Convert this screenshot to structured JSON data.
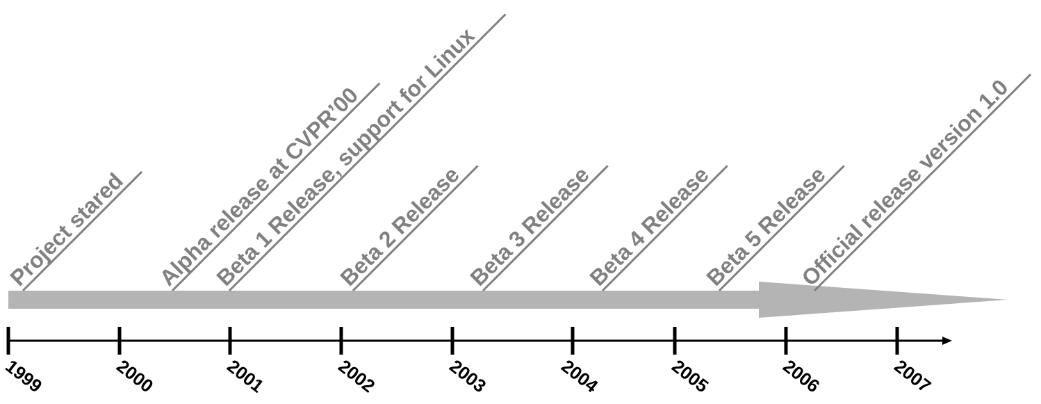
{
  "timeline": {
    "years": [
      "1999",
      "2000",
      "2001",
      "2002",
      "2003",
      "2004",
      "2005",
      "2006",
      "2007"
    ],
    "events": [
      {
        "label": "Project stared"
      },
      {
        "label": "Alpha release at CVPR’00"
      },
      {
        "label": "Beta 1 Release, support for Linux"
      },
      {
        "label": "Beta 2 Release"
      },
      {
        "label": "Beta 3 Release"
      },
      {
        "label": "Beta 4 Release"
      },
      {
        "label": "Beta 5 Release"
      },
      {
        "label": "Official release version 1.0"
      }
    ],
    "colors": {
      "arrow_band": "#b4b4b4",
      "event_text": "#808080",
      "axis": "#000000"
    }
  }
}
